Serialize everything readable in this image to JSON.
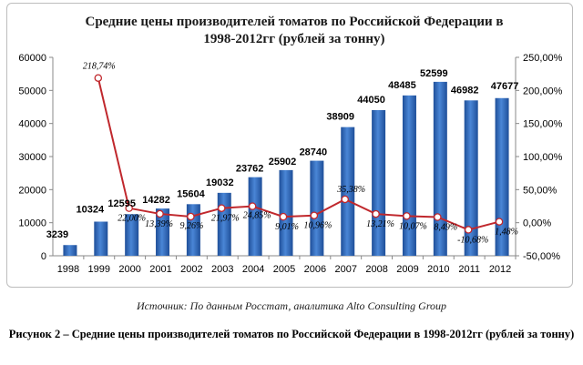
{
  "chart_data": {
    "type": "bar",
    "title_lines": [
      "Средние цены производителей томатов по Российской Федерации в",
      "1998-2012гг (рублей за тонну)"
    ],
    "categories": [
      "1998",
      "1999",
      "2000",
      "2001",
      "2002",
      "2003",
      "2004",
      "2005",
      "2006",
      "2007",
      "2008",
      "2009",
      "2010",
      "2011",
      "2012"
    ],
    "values": [
      3239,
      10324,
      12595,
      14282,
      15604,
      19032,
      23762,
      25902,
      28740,
      38909,
      44050,
      48485,
      52599,
      46982,
      47677
    ],
    "value_labels": [
      "3239",
      "10324",
      "12595",
      "14282",
      "15604",
      "19032",
      "23762",
      "25902",
      "28740",
      "38909",
      "44050",
      "48485",
      "52599",
      "46982",
      "47677"
    ],
    "line_values": [
      null,
      218.74,
      22.0,
      13.39,
      9.26,
      21.97,
      24.85,
      9.01,
      10.96,
      35.38,
      13.21,
      10.07,
      8.49,
      -10.68,
      1.48
    ],
    "line_labels": [
      "",
      "218,74%",
      "22,00%",
      "13,39%",
      "9,26%",
      "21,97%",
      "24,85%",
      "9,01%",
      "10,96%",
      "35,38%",
      "13,21%",
      "10,07%",
      "8,49%",
      "-10,68%",
      "1,48%"
    ],
    "ylim": [
      0,
      60000
    ],
    "y_ticks": [
      "0",
      "10000",
      "20000",
      "30000",
      "40000",
      "50000",
      "60000"
    ],
    "y2lim": [
      -50,
      250
    ],
    "y2_ticks": [
      "-50,00%",
      "0,00%",
      "50,00%",
      "100,00%",
      "150,00%",
      "200,00%",
      "250,00%"
    ],
    "bar_color": "#2f6bbf",
    "line_color": "#c0282d"
  },
  "source": "Источник: По данным Росстат, аналитика Alto Consulting Group",
  "caption": "Рисунок 2 – Средние цены производителей томатов по Российской Федерации в 1998-2012гг (рублей за тонну)"
}
